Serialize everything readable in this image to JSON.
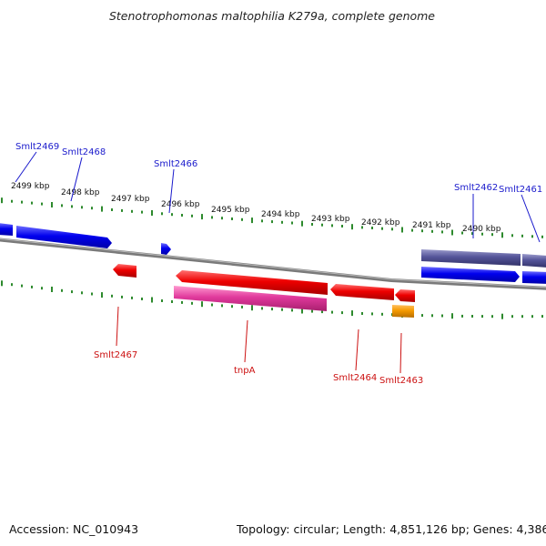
{
  "title": "Stenotrophomonas maltophilia K279a, complete genome",
  "footer": {
    "accession": "Accession: NC_010943",
    "topology": "Topology: circular; Length: 4,851,126 bp; Genes: 4,386"
  },
  "colors": {
    "forward_gene": "#0000ee",
    "reverse_gene": "#ee0000",
    "rna_gene": "#5b5ba0",
    "cds_pink": "#e0399c",
    "misc_orange": "#f59a00",
    "tick_green": "#2d8a2d",
    "backbone": "#888888",
    "label_forward": "#1a1acc",
    "label_reverse": "#cc1111"
  },
  "scale_labels": [
    "2499 kbp",
    "2498 kbp",
    "2497 kbp",
    "2496 kbp",
    "2495 kbp",
    "2494 kbp",
    "2493 kbp",
    "2492 kbp",
    "2491 kbp",
    "2490 kbp"
  ],
  "gene_labels": {
    "forward": [
      "Smlt2469",
      "Smlt2468",
      "Smlt2466",
      "Smlt2462",
      "Smlt2461"
    ],
    "reverse": [
      "Smlt2467",
      "tnpA",
      "Smlt2464",
      "Smlt2463"
    ]
  }
}
